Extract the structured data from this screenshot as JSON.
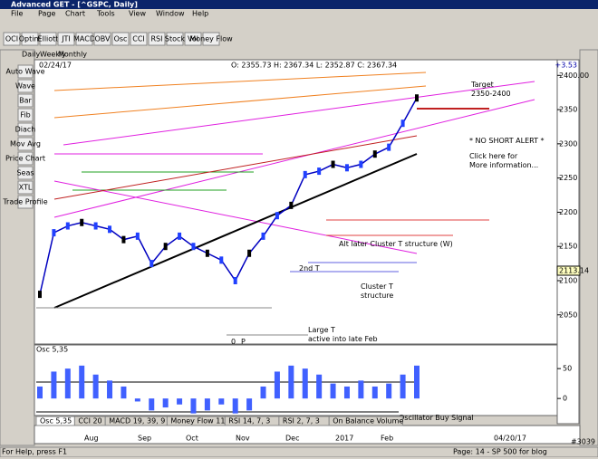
{
  "window": {
    "title": "Advanced GET - [^GSPC, Daily]",
    "menu": [
      "File",
      "Page",
      "Chart",
      "Tools",
      "View",
      "Window",
      "Help"
    ]
  },
  "toolbar": [
    "OCI",
    "Optim",
    "Elliott",
    "JTI",
    "MACD",
    "OBV",
    "Osc",
    "CCI",
    "RSI",
    "Stock",
    "Vol",
    "Money Flow"
  ],
  "left_toolbar": [
    "Auto Wave",
    "Wave",
    "Bar",
    "Fib",
    "Diach",
    "Mov Avg",
    "Price Chart",
    "Seas",
    "XTL",
    "Trade Profile"
  ],
  "chart_tabs": [
    "Daily",
    "Weekly",
    "Monthly"
  ],
  "header": {
    "date": "02/24/17",
    "ohlc": "O: 2355.73  H: 2367.34  L: 2352.87  C: 2367.34",
    "change": "+3.53"
  },
  "price": {
    "ylim": [
      2010,
      2407
    ],
    "yticks": [
      {
        "value": 2400,
        "label": "2400.00"
      },
      2350,
      2300,
      2250,
      2200,
      2150,
      2100,
      2050
    ],
    "last_label": "2113.14",
    "closes": [
      2080,
      2170,
      2180,
      2185,
      2180,
      2175,
      2160,
      2165,
      2125,
      2150,
      2165,
      2150,
      2140,
      2130,
      2100,
      2140,
      2165,
      2195,
      2210,
      2255,
      2260,
      2270,
      2265,
      2270,
      2285,
      2295,
      2330,
      2367
    ]
  },
  "annotations": {
    "target": "Target\n2350-2400",
    "alert": "* NO SHORT ALERT *",
    "click": "Click here for\nMore information...",
    "alt": "Alt later Cluster T structure (W)",
    "second": "2nd T",
    "cluster": "Cluster T\nstructure",
    "large": "Large T\nactive into late Feb",
    "zero": "0",
    "p": "P",
    "osc_buy": "Oscillator Buy Signal"
  },
  "oscillator": {
    "name": "Osc 5,35",
    "ylim": [
      -24,
      79
    ],
    "yticks": [
      50,
      0
    ],
    "values": [
      20,
      45,
      50,
      55,
      40,
      30,
      20,
      -5,
      -20,
      -15,
      -10,
      -25,
      -20,
      -10,
      -25,
      -20,
      20,
      45,
      55,
      50,
      40,
      25,
      20,
      30,
      20,
      25,
      40,
      55
    ]
  },
  "indicator_tabs": [
    "Osc 5,35",
    "CCI 20",
    "MACD 19, 39, 9",
    "Money Flow 11",
    "RSI 14, 7, 3",
    "RSI 2, 7, 3",
    "On Balance Volume"
  ],
  "date_axis": [
    "Aug",
    "Sep",
    "Oct",
    "Nov",
    "Dec",
    "2017",
    "Feb",
    "04/20/17"
  ],
  "status": {
    "help": "For Help, press F1",
    "page": "Page: 14 - SP 500 for blog",
    "id": "#3039"
  }
}
